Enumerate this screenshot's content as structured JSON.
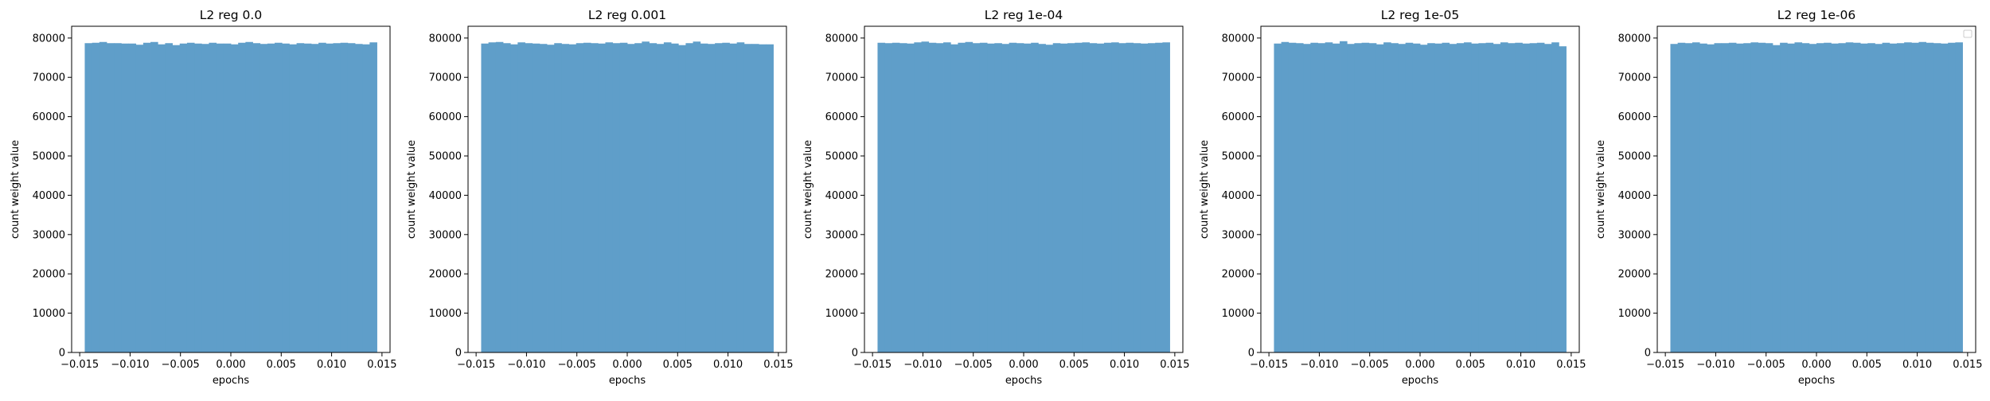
{
  "figure": {
    "background": "#ffffff"
  },
  "chart_data": [
    {
      "type": "bar",
      "title": "L2 reg 0.0",
      "xlabel": "epochs",
      "ylabel": "count weight value",
      "xlim": [
        -0.0158,
        0.0158
      ],
      "ylim": [
        0,
        83000
      ],
      "xticks": [
        -0.015,
        -0.01,
        -0.005,
        0.0,
        0.005,
        0.01,
        0.015
      ],
      "xtick_labels": [
        "−0.015",
        "−0.010",
        "−0.005",
        "0.000",
        "0.005",
        "0.010",
        "0.015"
      ],
      "yticks": [
        0,
        10000,
        20000,
        30000,
        40000,
        50000,
        60000,
        70000,
        80000
      ],
      "ytick_labels": [
        "0",
        "10000",
        "20000",
        "30000",
        "40000",
        "50000",
        "60000",
        "70000",
        "80000"
      ],
      "bin_range": [
        -0.0145,
        0.0145
      ],
      "values": [
        78700,
        78800,
        79000,
        78700,
        78700,
        78600,
        78600,
        78300,
        78800,
        79000,
        78400,
        78700,
        78200,
        78600,
        78800,
        78600,
        78500,
        78800,
        78600,
        78600,
        78400,
        78800,
        79000,
        78700,
        78500,
        78600,
        78800,
        78600,
        78400,
        78700,
        78600,
        78500,
        78800,
        78600,
        78700,
        78800,
        78700,
        78500,
        78400,
        78900
      ],
      "bar_color": "#5f9ec9",
      "legend": false
    },
    {
      "type": "bar",
      "title": "L2 reg 0.001",
      "xlabel": "epochs",
      "ylabel": "count weight value",
      "xlim": [
        -0.0158,
        0.0158
      ],
      "ylim": [
        0,
        83000
      ],
      "xticks": [
        -0.015,
        -0.01,
        -0.005,
        0.0,
        0.005,
        0.01,
        0.015
      ],
      "xtick_labels": [
        "−0.015",
        "−0.010",
        "−0.005",
        "0.000",
        "0.005",
        "0.010",
        "0.015"
      ],
      "yticks": [
        0,
        10000,
        20000,
        30000,
        40000,
        50000,
        60000,
        70000,
        80000
      ],
      "ytick_labels": [
        "0",
        "10000",
        "20000",
        "30000",
        "40000",
        "50000",
        "60000",
        "70000",
        "80000"
      ],
      "bin_range": [
        -0.0145,
        0.0145
      ],
      "values": [
        78600,
        78900,
        79000,
        78700,
        78400,
        78900,
        78700,
        78600,
        78500,
        78300,
        78700,
        78500,
        78400,
        78700,
        78800,
        78700,
        78600,
        78900,
        78700,
        78800,
        78500,
        78700,
        79100,
        78700,
        78500,
        78900,
        78600,
        78200,
        78700,
        79100,
        78600,
        78500,
        78700,
        78800,
        78600,
        78900,
        78500,
        78500,
        78400,
        78400
      ],
      "bar_color": "#5f9ec9",
      "legend": false
    },
    {
      "type": "bar",
      "title": "L2 reg 1e-04",
      "xlabel": "epochs",
      "ylabel": "count weight value",
      "xlim": [
        -0.0158,
        0.0158
      ],
      "ylim": [
        0,
        83000
      ],
      "xticks": [
        -0.015,
        -0.01,
        -0.005,
        0.0,
        0.005,
        0.01,
        0.015
      ],
      "xtick_labels": [
        "−0.015",
        "−0.010",
        "−0.005",
        "0.000",
        "0.005",
        "0.010",
        "0.015"
      ],
      "yticks": [
        0,
        10000,
        20000,
        30000,
        40000,
        50000,
        60000,
        70000,
        80000
      ],
      "ytick_labels": [
        "0",
        "10000",
        "20000",
        "30000",
        "40000",
        "50000",
        "60000",
        "70000",
        "80000"
      ],
      "bin_range": [
        -0.0145,
        0.0145
      ],
      "values": [
        78800,
        78700,
        78800,
        78700,
        78600,
        78900,
        79100,
        78800,
        78700,
        78900,
        78400,
        78800,
        79000,
        78700,
        78800,
        78600,
        78700,
        78500,
        78800,
        78700,
        78600,
        78800,
        78500,
        78300,
        78700,
        78600,
        78700,
        78800,
        78900,
        78700,
        78600,
        78800,
        78900,
        78700,
        78800,
        78700,
        78600,
        78700,
        78800,
        78900
      ],
      "bar_color": "#5f9ec9",
      "legend": false
    },
    {
      "type": "bar",
      "title": "L2 reg 1e-05",
      "xlabel": "epochs",
      "ylabel": "count weight value",
      "xlim": [
        -0.0158,
        0.0158
      ],
      "ylim": [
        0,
        83000
      ],
      "xticks": [
        -0.015,
        -0.01,
        -0.005,
        0.0,
        0.005,
        0.01,
        0.015
      ],
      "xtick_labels": [
        "−0.015",
        "−0.010",
        "−0.005",
        "0.000",
        "0.005",
        "0.010",
        "0.015"
      ],
      "yticks": [
        0,
        10000,
        20000,
        30000,
        40000,
        50000,
        60000,
        70000,
        80000
      ],
      "ytick_labels": [
        "0",
        "10000",
        "20000",
        "30000",
        "40000",
        "50000",
        "60000",
        "70000",
        "80000"
      ],
      "bin_range": [
        -0.0145,
        0.0145
      ],
      "values": [
        78600,
        79000,
        78800,
        78700,
        78500,
        78800,
        78700,
        78900,
        78600,
        79200,
        78500,
        78700,
        78800,
        78700,
        78400,
        78900,
        78700,
        78500,
        78800,
        78600,
        78300,
        78700,
        78600,
        78800,
        78500,
        78700,
        78900,
        78600,
        78700,
        78800,
        78500,
        78900,
        78700,
        78800,
        78600,
        78700,
        78800,
        78500,
        78900,
        77900
      ],
      "bar_color": "#5f9ec9",
      "legend": false
    },
    {
      "type": "bar",
      "title": "L2 reg 1e-06",
      "xlabel": "epochs",
      "ylabel": "count weight value",
      "xlim": [
        -0.0158,
        0.0158
      ],
      "ylim": [
        0,
        83000
      ],
      "xticks": [
        -0.015,
        -0.01,
        -0.005,
        0.0,
        0.005,
        0.01,
        0.015
      ],
      "xtick_labels": [
        "−0.015",
        "−0.010",
        "−0.005",
        "0.000",
        "0.005",
        "0.010",
        "0.015"
      ],
      "yticks": [
        0,
        10000,
        20000,
        30000,
        40000,
        50000,
        60000,
        70000,
        80000
      ],
      "ytick_labels": [
        "0",
        "10000",
        "20000",
        "30000",
        "40000",
        "50000",
        "60000",
        "70000",
        "80000"
      ],
      "bin_range": [
        -0.0145,
        0.0145
      ],
      "values": [
        78500,
        78800,
        78700,
        78900,
        78600,
        78400,
        78700,
        78700,
        78800,
        78600,
        78700,
        78900,
        78800,
        78700,
        78200,
        78800,
        78600,
        78900,
        78700,
        78500,
        78700,
        78800,
        78600,
        78700,
        78900,
        78800,
        78600,
        78700,
        78500,
        78800,
        78600,
        78700,
        78900,
        78800,
        79000,
        78800,
        78700,
        78600,
        78800,
        78900
      ],
      "bar_color": "#5f9ec9",
      "legend": true,
      "legend_entries": [],
      "legend_position": "top-right"
    }
  ]
}
